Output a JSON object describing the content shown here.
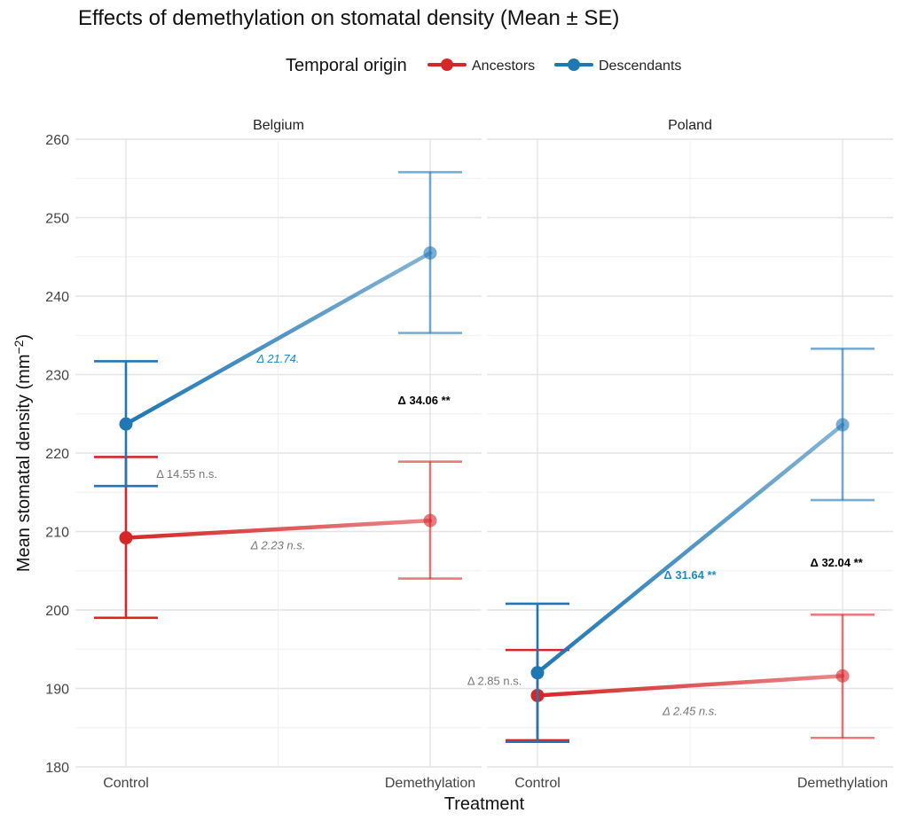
{
  "chart_data": {
    "type": "line",
    "title": "Effects of demethylation on stomatal density (Mean ± SE)",
    "xlabel": "Treatment",
    "ylabel": "Mean stomatal density (mm",
    "ylabel_sup": "−2",
    "ylabel_close": ")",
    "ylim": [
      180,
      260
    ],
    "yticks": [
      180,
      190,
      200,
      210,
      220,
      230,
      240,
      250,
      260
    ],
    "categories": [
      "Control",
      "Demethylation"
    ],
    "legend": {
      "title": "Temporal origin",
      "position": "top",
      "items": [
        {
          "name": "Ancestors",
          "color": "#d62728"
        },
        {
          "name": "Descendants",
          "color": "#1f77b4"
        }
      ]
    },
    "panels": [
      {
        "name": "Belgium",
        "series": [
          {
            "name": "Ancestors",
            "color": "#d62728",
            "means": [
              209.2,
              211.4
            ],
            "se_low": [
              199.0,
              204.0
            ],
            "se_high": [
              219.5,
              218.9
            ]
          },
          {
            "name": "Descendants",
            "color": "#1f77b4",
            "means": [
              223.7,
              245.5
            ],
            "se_low": [
              215.8,
              235.3
            ],
            "se_high": [
              231.7,
              255.8
            ]
          }
        ],
        "annotations": [
          {
            "text": "Δ 21.74.",
            "x": 0.5,
            "y": 232.1,
            "color": "#1b8bc7",
            "italic": true,
            "bold": false,
            "anchor": "middle"
          },
          {
            "text": "Δ 34.06 **",
            "x": 0.98,
            "y": 226.8,
            "color": "#000000",
            "italic": false,
            "bold": true,
            "anchor": "middle"
          },
          {
            "text": "Δ 14.55 n.s.",
            "x": 0.1,
            "y": 217.4,
            "color": "#777777",
            "italic": false,
            "bold": false,
            "anchor": "start"
          },
          {
            "text": "Δ 2.23 n.s.",
            "x": 0.5,
            "y": 208.3,
            "color": "#777777",
            "italic": true,
            "bold": false,
            "anchor": "middle"
          }
        ]
      },
      {
        "name": "Poland",
        "series": [
          {
            "name": "Ancestors",
            "color": "#d62728",
            "means": [
              189.1,
              191.6
            ],
            "se_low": [
              183.4,
              183.7
            ],
            "se_high": [
              194.9,
              199.4
            ]
          },
          {
            "name": "Descendants",
            "color": "#1f77b4",
            "means": [
              192.0,
              223.6
            ],
            "se_low": [
              183.2,
              214.0
            ],
            "se_high": [
              200.8,
              233.3
            ]
          }
        ],
        "annotations": [
          {
            "text": "Δ 31.64 **",
            "x": 0.5,
            "y": 204.5,
            "color": "#1b8bc7",
            "italic": false,
            "bold": true,
            "anchor": "middle"
          },
          {
            "text": "Δ 32.04 **",
            "x": 0.98,
            "y": 206.1,
            "color": "#000000",
            "italic": false,
            "bold": true,
            "anchor": "middle"
          },
          {
            "text": "Δ 2.85 n.s.",
            "x": -0.23,
            "y": 191.0,
            "color": "#777777",
            "italic": false,
            "bold": false,
            "anchor": "start"
          },
          {
            "text": "Δ 2.45 n.s.",
            "x": 0.5,
            "y": 187.2,
            "color": "#777777",
            "italic": true,
            "bold": false,
            "anchor": "middle"
          }
        ]
      }
    ]
  }
}
